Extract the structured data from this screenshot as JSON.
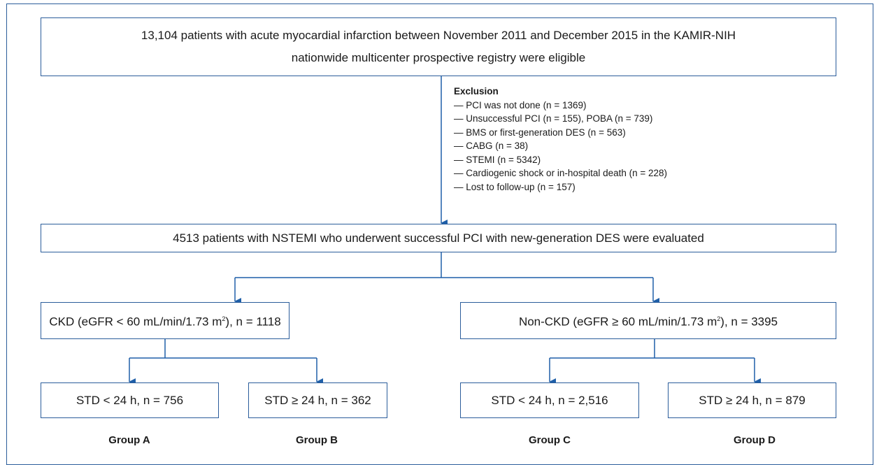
{
  "eligible": {
    "lines": [
      "13,104 patients with acute myocardial infarction between November 2011 and December 2015 in the KAMIR-NIH",
      "nationwide multicenter prospective registry were eligible"
    ]
  },
  "exclusion": {
    "title": "Exclusion",
    "items": [
      "— PCI was not done (n = 1369)",
      "— Unsuccessful PCI (n = 155), POBA (n = 739)",
      "— BMS or first-generation DES (n = 563)",
      "— CABG (n = 38)",
      "— STEMI (n = 5342)",
      "— Cardiogenic shock or in-hospital death (n = 228)",
      "— Lost to follow-up (n = 157)"
    ]
  },
  "evaluated": "4513 patients with NSTEMI who underwent successful PCI with new-generation DES were evaluated",
  "groups": [
    {
      "label": "CKD (eGFR < 60 mL/min/1.73 m",
      "sup": "2",
      "suffix": "), n = 1118",
      "subgroups": [
        {
          "label": "STD < 24 h, n = 756",
          "name": "Group A"
        },
        {
          "label": "STD ≥ 24 h, n = 362",
          "name": "Group B"
        }
      ]
    },
    {
      "label": "Non-CKD (eGFR ≥ 60 mL/min/1.73 m",
      "sup": "2",
      "suffix": "), n = 3395",
      "subgroups": [
        {
          "label": "STD < 24 h, n = 2,516",
          "name": "Group C"
        },
        {
          "label": "STD ≥ 24 h, n = 879",
          "name": "Group D"
        }
      ]
    }
  ]
}
